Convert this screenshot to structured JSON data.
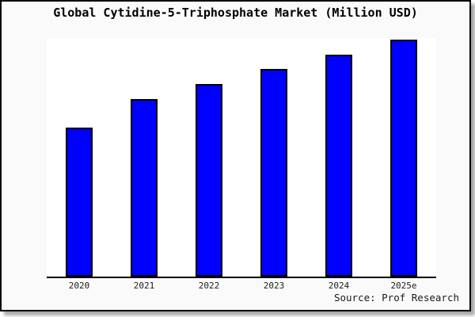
{
  "window": {
    "background_color": "#fafafa",
    "plot_background_color": "#ffffff",
    "border_color": "#000000",
    "accent_color": "#0000ff"
  },
  "chart_data": {
    "type": "bar",
    "title": "Global Cytidine-5-Triphosphate Market (Million USD)",
    "categories": [
      "2020",
      "2021",
      "2022",
      "2023",
      "2024",
      "2025e"
    ],
    "values": [
      189,
      226,
      245,
      264,
      282,
      301
    ],
    "ylim": [
      0,
      303
    ],
    "xlabel": "",
    "ylabel": "",
    "grid": false,
    "legend": null,
    "y_axis_visible": false,
    "bar_color": "#0000ff",
    "bar_border_color": "#000000",
    "source": "Source: Prof Research"
  }
}
